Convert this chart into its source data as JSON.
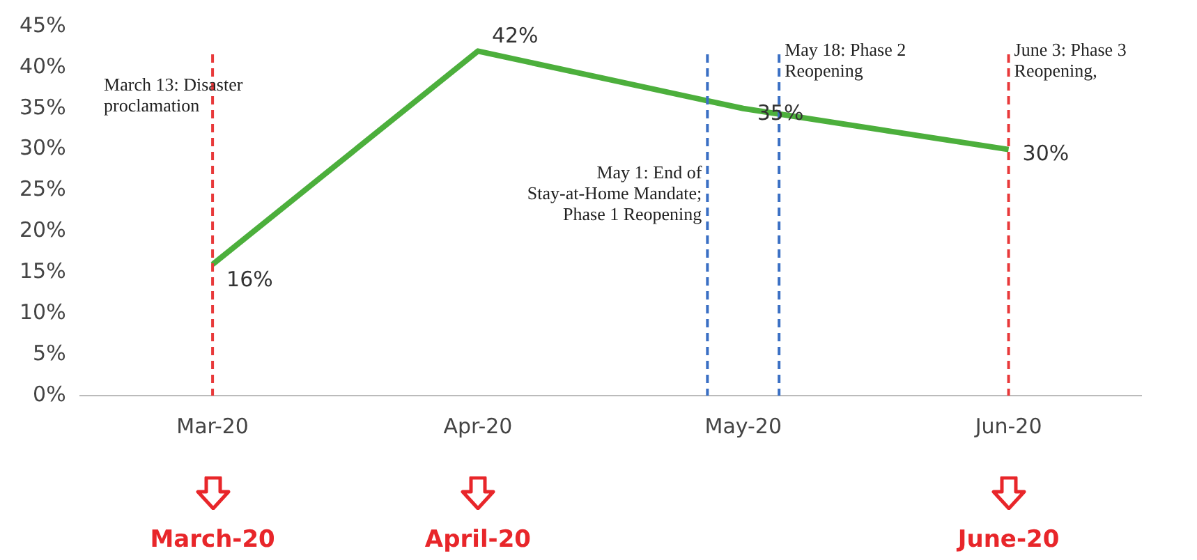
{
  "chart_data": {
    "type": "line",
    "categories": [
      "Mar-20",
      "Apr-20",
      "May-20",
      "Jun-20"
    ],
    "series": [
      {
        "color": "#4caf3c",
        "values": [
          16,
          42,
          35,
          30
        ],
        "value_labels": [
          "16%",
          "42%",
          "35%",
          "30%"
        ]
      }
    ],
    "ylim": [
      0,
      45
    ],
    "yticks": [
      {
        "value": 0,
        "label": "0%"
      },
      {
        "value": 5,
        "label": "5%"
      },
      {
        "value": 10,
        "label": "10%"
      },
      {
        "value": 15,
        "label": "15%"
      },
      {
        "value": 20,
        "label": "20%"
      },
      {
        "value": 25,
        "label": "25%"
      },
      {
        "value": 30,
        "label": "30%"
      },
      {
        "value": 35,
        "label": "35%"
      },
      {
        "value": 40,
        "label": "40%"
      },
      {
        "value": 45,
        "label": "45%"
      }
    ],
    "grid": false,
    "legend": false,
    "marker": "none",
    "line_style": "solid",
    "ref_lines": [
      {
        "axis": "x",
        "value": "Mar-20",
        "label": "March 13: Disaster proclamation",
        "color": "#e8393a",
        "line_style": "dashed"
      },
      {
        "axis": "x",
        "value": "May-20",
        "label": "May 1: End of Stay-at-Home Mandate; Phase 1 Reopening",
        "color": "#3a6fc4",
        "line_style": "dashed"
      },
      {
        "axis": "x",
        "value": "May-20",
        "label": "May 18: Phase 2 Reopening",
        "color": "#3a6fc4",
        "line_style": "dashed"
      },
      {
        "axis": "x",
        "value": "Jun-20",
        "label": "June 3: Phase 3 Reopening,",
        "color": "#e8393a",
        "line_style": "dashed"
      }
    ],
    "annotations": [
      "March-20",
      "April-20",
      "June-20"
    ]
  }
}
